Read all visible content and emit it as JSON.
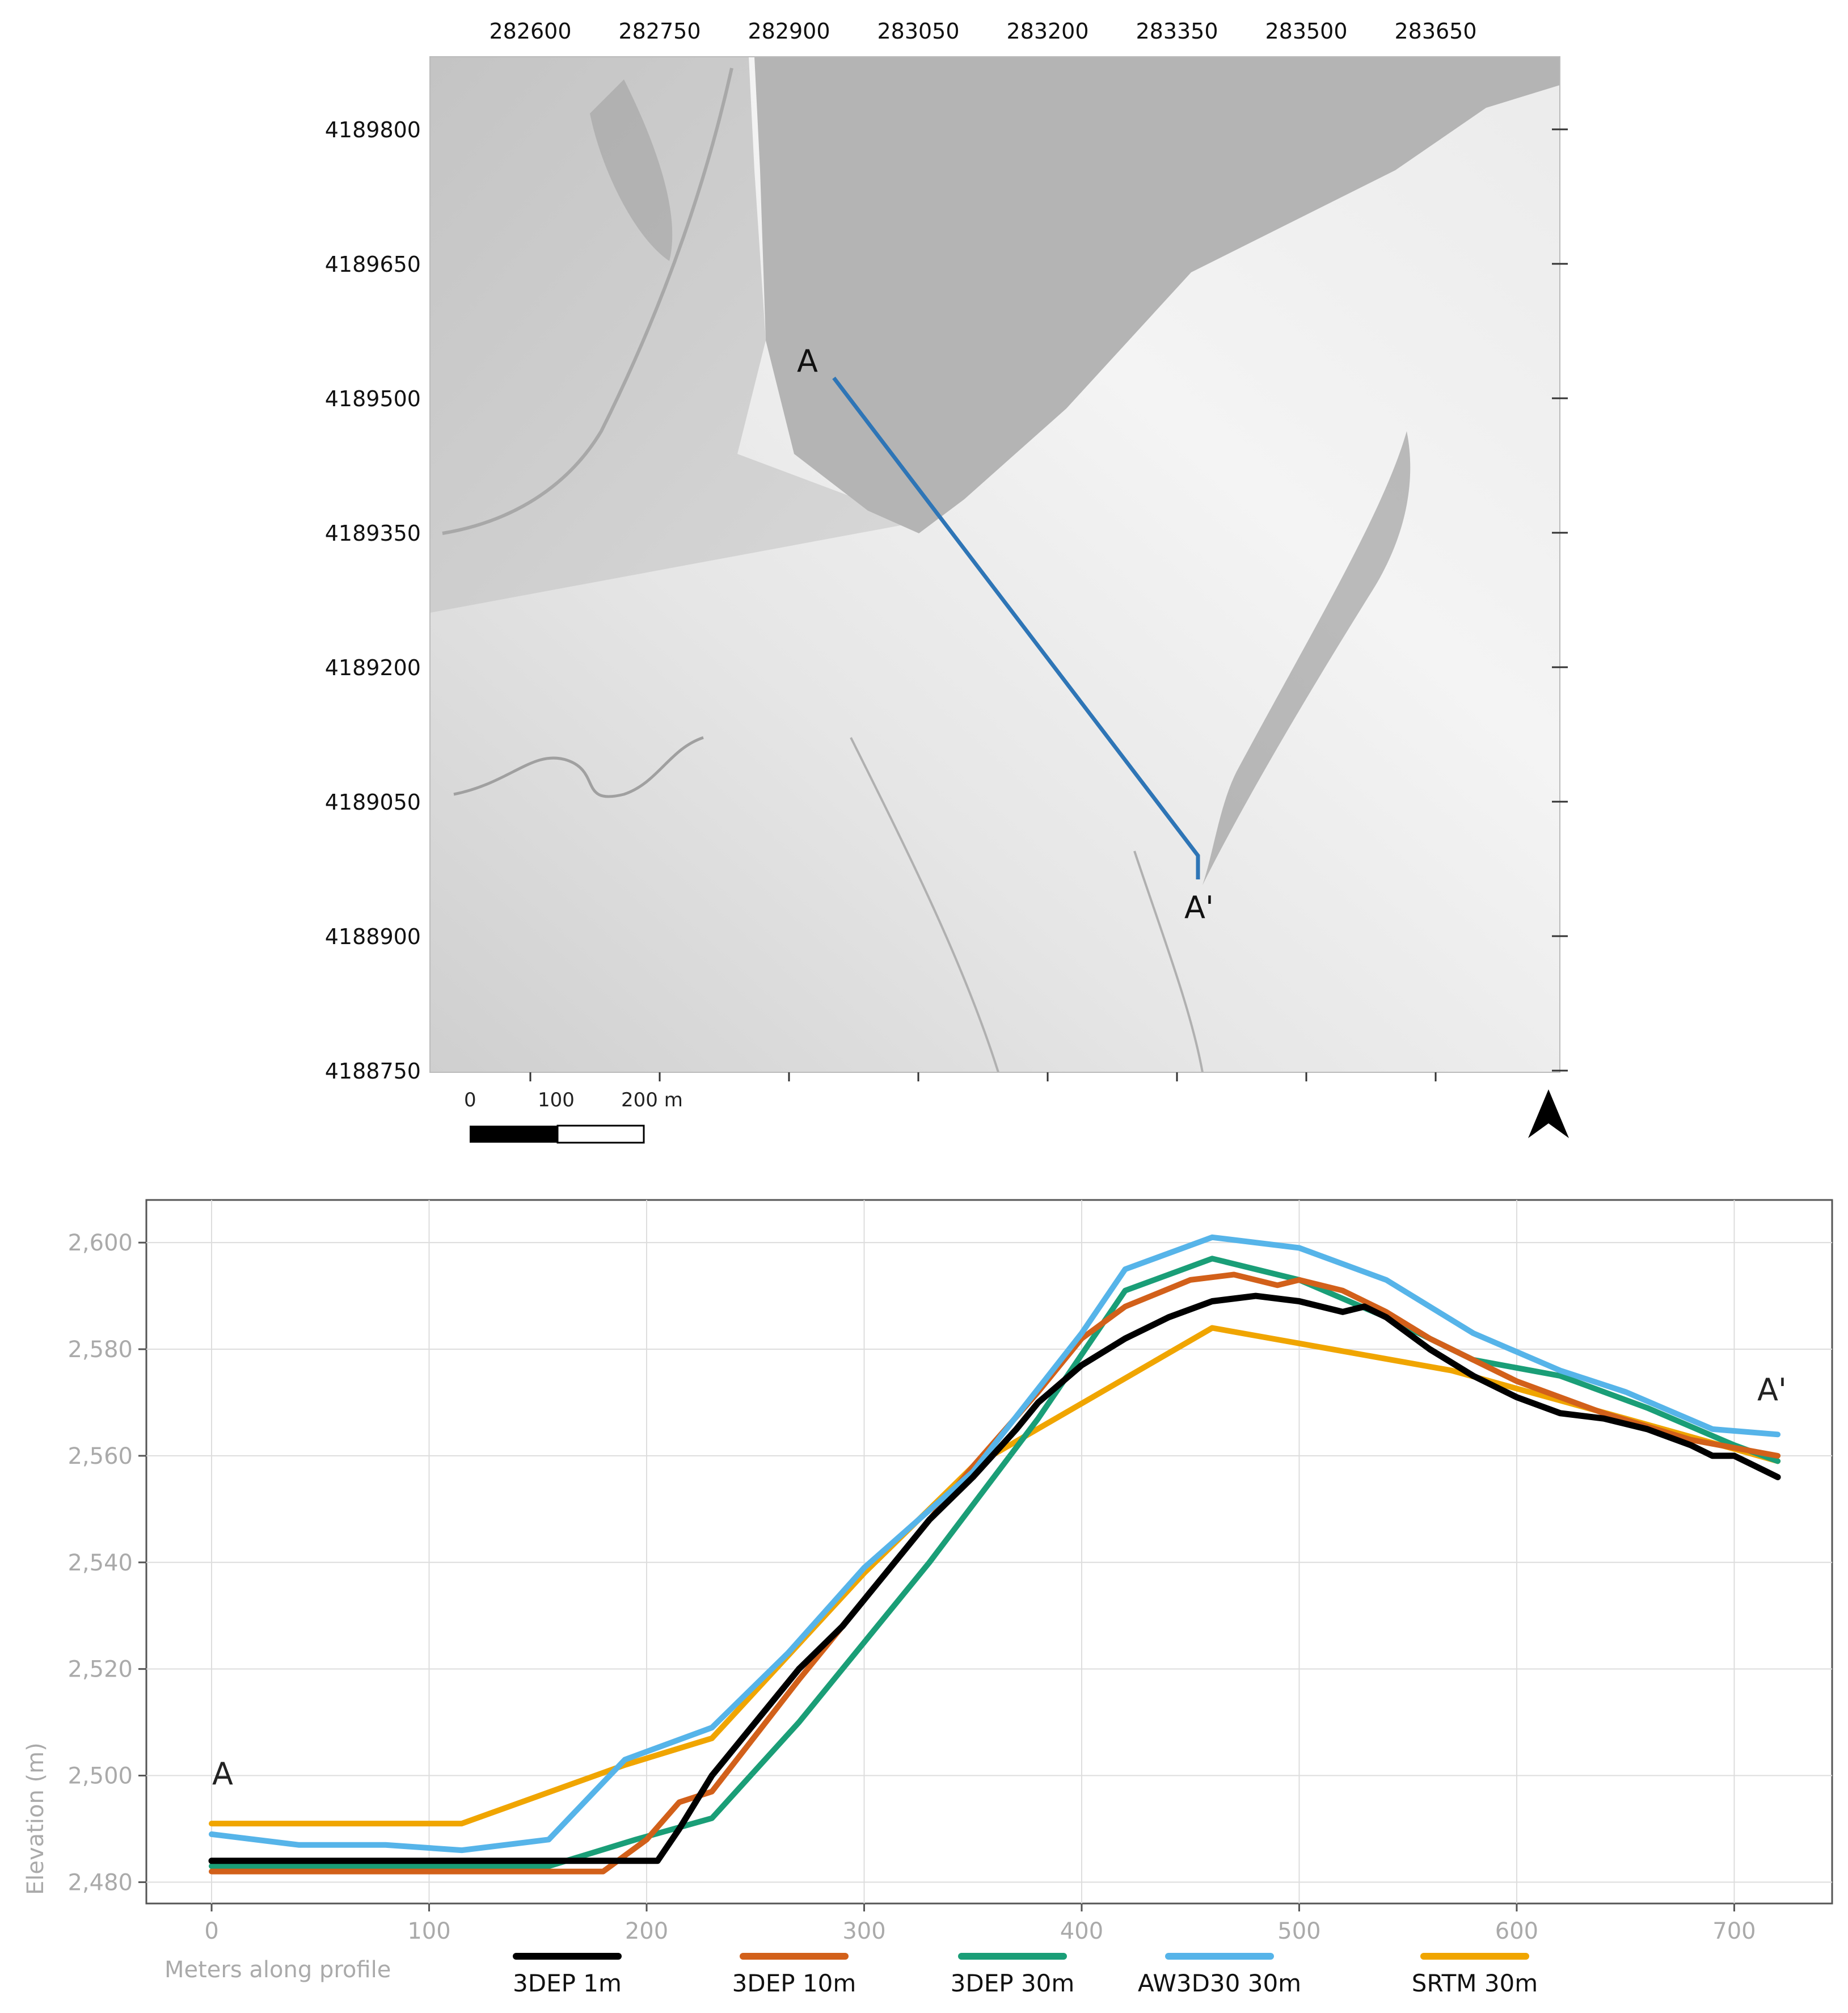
{
  "map": {
    "x_ticks": [
      "282600",
      "282750",
      "282900",
      "283050",
      "283200",
      "283350",
      "283500",
      "283650"
    ],
    "y_ticks": [
      "4189800",
      "4189650",
      "4189500",
      "4189350",
      "4189200",
      "4189050",
      "4188900",
      "4188750"
    ],
    "scale_bar": {
      "labels": [
        "0",
        "100",
        "200 m"
      ]
    },
    "profile_start_label": "A",
    "profile_end_label": "A'",
    "profile_line_color": "#2e75b6",
    "north_arrow_icon": "north-arrow-icon"
  },
  "chart_data": {
    "type": "line",
    "title": "",
    "xlabel": "Meters along profile",
    "ylabel": "Elevation (m)",
    "xlim": [
      -30,
      745
    ],
    "ylim": [
      2476,
      2608
    ],
    "x_ticks": [
      0,
      100,
      200,
      300,
      400,
      500,
      600,
      700
    ],
    "x_tick_labels": [
      "0",
      "100",
      "200",
      "300",
      "400",
      "500",
      "600",
      "700"
    ],
    "y_ticks": [
      2480,
      2500,
      2520,
      2540,
      2560,
      2580,
      2600
    ],
    "y_tick_labels": [
      "2,480",
      "2,500",
      "2,520",
      "2,540",
      "2,560",
      "2,580",
      "2,600"
    ],
    "grid": true,
    "legend_position": "bottom",
    "annotations": [
      "A",
      "A'"
    ],
    "series": [
      {
        "name": "SRTM 30m",
        "color": "#f0a500",
        "x": [
          0,
          115,
          190,
          230,
          300,
          350,
          460,
          570,
          650,
          720
        ],
        "y": [
          2491,
          2491,
          2502,
          2507,
          2538,
          2558,
          2584,
          2576,
          2567,
          2559
        ]
      },
      {
        "name": "3DEP 30m",
        "color": "#1a9e77",
        "x": [
          0,
          155,
          195,
          230,
          270,
          330,
          380,
          420,
          460,
          500,
          540,
          580,
          620,
          660,
          700,
          720
        ],
        "y": [
          2483,
          2483,
          2488,
          2492,
          2510,
          2540,
          2567,
          2591,
          2597,
          2593,
          2586,
          2578,
          2575,
          2569,
          2562,
          2559
        ]
      },
      {
        "name": "3DEP 10m",
        "color": "#d2601a",
        "x": [
          0,
          180,
          200,
          215,
          230,
          270,
          310,
          350,
          380,
          400,
          420,
          450,
          470,
          490,
          500,
          520,
          540,
          560,
          600,
          640,
          680,
          720
        ],
        "y": [
          2482,
          2482,
          2488,
          2495,
          2497,
          2518,
          2538,
          2558,
          2572,
          2582,
          2588,
          2593,
          2594,
          2592,
          2593,
          2591,
          2587,
          2582,
          2574,
          2568,
          2563,
          2560
        ]
      },
      {
        "name": "AW3D30 30m",
        "color": "#56b4e9",
        "x": [
          0,
          40,
          80,
          115,
          155,
          190,
          230,
          265,
          300,
          350,
          400,
          420,
          460,
          500,
          540,
          580,
          620,
          650,
          690,
          720
        ],
        "y": [
          2489,
          2487,
          2487,
          2486,
          2488,
          2503,
          2509,
          2523,
          2539,
          2557,
          2583,
          2595,
          2601,
          2599,
          2593,
          2583,
          2576,
          2572,
          2565,
          2564
        ]
      },
      {
        "name": "3DEP 1m",
        "color": "#000000",
        "x": [
          0,
          205,
          215,
          230,
          250,
          270,
          290,
          310,
          330,
          350,
          370,
          380,
          400,
          420,
          440,
          460,
          480,
          500,
          520,
          530,
          540,
          560,
          580,
          600,
          620,
          640,
          660,
          680,
          690,
          700,
          710,
          720
        ],
        "y": [
          2484,
          2484,
          2490,
          2500,
          2510,
          2520,
          2528,
          2538,
          2548,
          2556,
          2565,
          2570,
          2577,
          2582,
          2586,
          2589,
          2590,
          2589,
          2587,
          2588,
          2586,
          2580,
          2575,
          2571,
          2568,
          2567,
          2565,
          2562,
          2560,
          2560,
          2558,
          2556
        ]
      }
    ],
    "legend_order": [
      "3DEP 1m",
      "3DEP 10m",
      "3DEP 30m",
      "AW3D30 30m",
      "SRTM 30m"
    ]
  }
}
